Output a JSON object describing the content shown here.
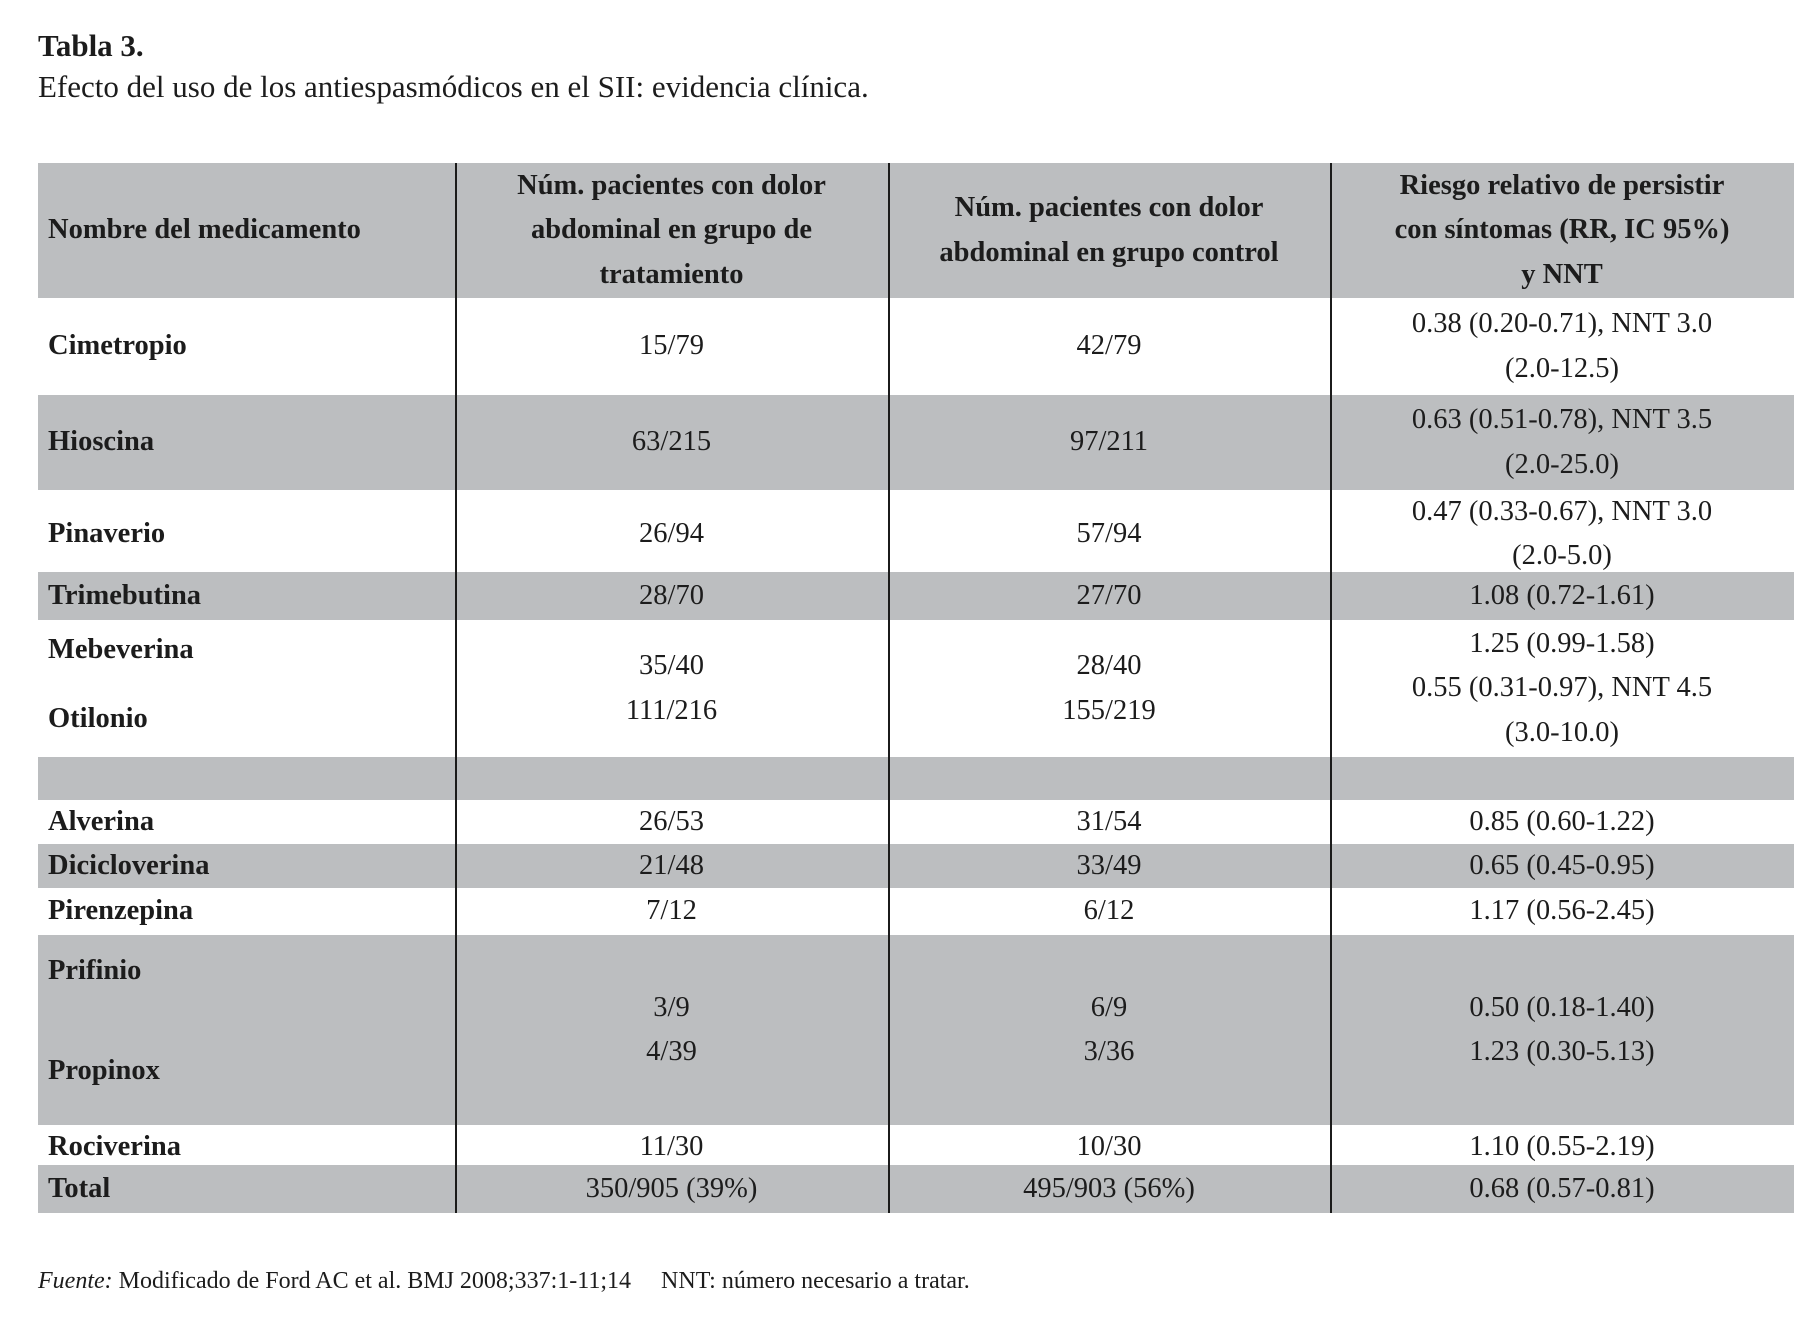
{
  "caption": {
    "label": "Tabla 3.",
    "title": "Efecto del uso de los antiespasmódicos en el SII: evidencia clínica."
  },
  "colors": {
    "row_shade": "#bcbec0",
    "rule": "#1b1b1b",
    "text": "#1c1c1c"
  },
  "table": {
    "headers": {
      "name": "Nombre del medicamento",
      "treatment": "Núm. pacientes con dolor\nabdominal en grupo de\ntratamiento",
      "control": "Núm. pacientes con dolor\nabdominal en grupo control",
      "rr": "Riesgo relativo de persistir\ncon síntomas (RR, IC 95%)\ny NNT"
    },
    "rows": [
      {
        "name": "Cimetropio",
        "treatment": "15/79",
        "control": "42/79",
        "rr": "0.38 (0.20-0.71), NNT 3.0\n(2.0-12.5)"
      },
      {
        "name": "Hioscina",
        "treatment": "63/215",
        "control": "97/211",
        "rr": "0.63 (0.51-0.78), NNT 3.5\n(2.0-25.0)"
      },
      {
        "name": "Pinaverio",
        "treatment": "26/94",
        "control": "57/94",
        "rr": "0.47 (0.33-0.67), NNT 3.0\n(2.0-5.0)"
      },
      {
        "name": "Trimebutina",
        "treatment": "28/70",
        "control": "27/70",
        "rr": "1.08 (0.72-1.61)"
      },
      {
        "name_top": "Mebeverina",
        "name_bottom": "Otilonio",
        "treatment": "35/40\n111/216",
        "control": "28/40\n155/219",
        "rr": "1.25 (0.99-1.58)\n0.55 (0.31-0.97), NNT 4.5\n(3.0-10.0)"
      },
      {
        "name": "",
        "treatment": "",
        "control": "",
        "rr": ""
      },
      {
        "name": "Alverina",
        "treatment": "26/53",
        "control": "31/54",
        "rr": "0.85 (0.60-1.22)"
      },
      {
        "name": "Dicicloverina",
        "treatment": "21/48",
        "control": "33/49",
        "rr": "0.65 (0.45-0.95)"
      },
      {
        "name": "Pirenzepina",
        "treatment": "7/12",
        "control": "6/12",
        "rr": "1.17 (0.56-2.45)"
      },
      {
        "name_top": "Prifinio",
        "name_bottom": "Propinox",
        "treatment": "3/9\n4/39",
        "control": "6/9\n3/36",
        "rr": "0.50 (0.18-1.40)\n1.23 (0.30-5.13)"
      },
      {
        "name": "Rociverina",
        "treatment": "11/30",
        "control": "10/30",
        "rr": "1.10 (0.55-2.19)"
      },
      {
        "name": "Total",
        "treatment": "350/905 (39%)",
        "control": "495/903 (56%)",
        "rr": "0.68 (0.57-0.81)"
      }
    ]
  },
  "footnote": {
    "source_label": "Fuente:",
    "source_text": " Modificado de Ford AC et al. BMJ 2008;337:1-11;14",
    "nnt_text": "NNT: número necesario a tratar."
  }
}
